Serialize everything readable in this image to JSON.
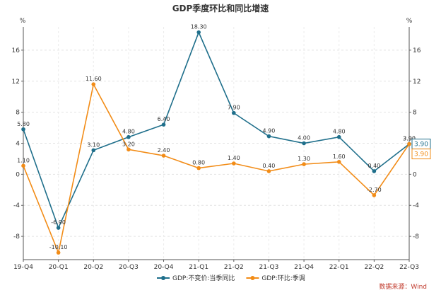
{
  "chart_data": {
    "type": "line",
    "title": "GDP季度环比和同比增速",
    "y_unit_left": "%",
    "y_unit_right": "%",
    "categories": [
      "19-Q4",
      "20-Q1",
      "20-Q2",
      "20-Q3",
      "20-Q4",
      "21-Q1",
      "21-Q2",
      "21-Q3",
      "21-Q4",
      "22-Q1",
      "22-Q2",
      "22-Q3"
    ],
    "ylim": [
      -11,
      19
    ],
    "yticks": [
      -8,
      -4,
      0,
      4,
      8,
      12,
      16
    ],
    "grid": true,
    "legend_position": "bottom",
    "series": [
      {
        "name": "GDP:不变价:当季同比",
        "color": "#1f6f8b",
        "values": [
          5.8,
          -6.9,
          3.1,
          4.8,
          6.4,
          18.3,
          7.9,
          4.9,
          4.0,
          4.8,
          0.4,
          3.9
        ],
        "labels": [
          "5.80",
          "-6.90",
          "3.10",
          "4.80",
          "6.40",
          "18.30",
          "7.90",
          "4.90",
          "4.00",
          "4.80",
          "0.40",
          "3.90"
        ],
        "end_badge": "3.90"
      },
      {
        "name": "GDP:环比:季调",
        "color": "#f28c17",
        "values": [
          1.1,
          -10.1,
          11.6,
          3.2,
          2.4,
          0.8,
          1.4,
          0.4,
          1.3,
          1.6,
          -2.7,
          3.9
        ],
        "labels": [
          "1.10",
          "-10.10",
          "11.60",
          "3.20",
          "2.40",
          "0.80",
          "1.40",
          "0.40",
          "1.30",
          "1.60",
          "-2.70",
          "3.90"
        ],
        "end_badge": "3.90"
      }
    ]
  },
  "source": "数据来源：Wind"
}
